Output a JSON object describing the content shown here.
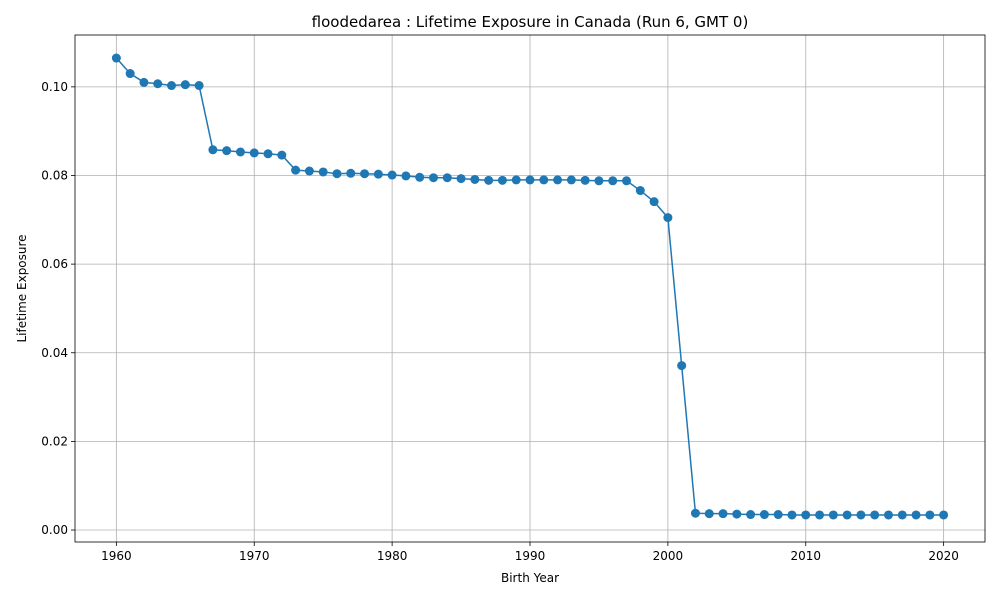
{
  "chart_data": {
    "type": "line",
    "title": "floodedarea : Lifetime Exposure in Canada (Run 6, GMT 0)",
    "xlabel": "Birth Year",
    "ylabel": "Lifetime Exposure",
    "xlim": [
      1957,
      2023
    ],
    "ylim": [
      -0.0027,
      0.1117
    ],
    "xticks": [
      1960,
      1970,
      1980,
      1990,
      2000,
      2010,
      2020
    ],
    "yticks": [
      0.0,
      0.02,
      0.04,
      0.06,
      0.08,
      0.1
    ],
    "ytick_labels": [
      "0.00",
      "0.02",
      "0.04",
      "0.06",
      "0.08",
      "0.10"
    ],
    "grid": true,
    "color": "#1f77b4",
    "marker": "circle",
    "series": [
      {
        "x": [
          1960,
          1961,
          1962,
          1963,
          1964,
          1965,
          1966,
          1967,
          1968,
          1969,
          1970,
          1971,
          1972,
          1973,
          1974,
          1975,
          1976,
          1977,
          1978,
          1979,
          1980,
          1981,
          1982,
          1983,
          1984,
          1985,
          1986,
          1987,
          1988,
          1989,
          1990,
          1991,
          1992,
          1993,
          1994,
          1995,
          1996,
          1997,
          1998,
          1999,
          2000,
          2001,
          2002,
          2003,
          2004,
          2005,
          2006,
          2007,
          2008,
          2009,
          2010,
          2011,
          2012,
          2013,
          2014,
          2015,
          2016,
          2017,
          2018,
          2019,
          2020
        ],
        "y": [
          0.1065,
          0.103,
          0.101,
          0.1007,
          0.1003,
          0.1005,
          0.1003,
          0.0858,
          0.0856,
          0.0853,
          0.0851,
          0.0849,
          0.0846,
          0.0812,
          0.081,
          0.0808,
          0.0804,
          0.0805,
          0.0804,
          0.0803,
          0.0801,
          0.0799,
          0.0796,
          0.0795,
          0.0795,
          0.0793,
          0.0791,
          0.0789,
          0.0789,
          0.079,
          0.079,
          0.079,
          0.079,
          0.079,
          0.0789,
          0.0788,
          0.0788,
          0.0788,
          0.0766,
          0.0741,
          0.0705,
          0.0371,
          0.0038,
          0.0037,
          0.0037,
          0.0036,
          0.0035,
          0.0035,
          0.0035,
          0.0034,
          0.0034,
          0.0034,
          0.0034,
          0.0034,
          0.0034,
          0.0034,
          0.0034,
          0.0034,
          0.0034,
          0.0034,
          0.0034
        ]
      }
    ]
  }
}
